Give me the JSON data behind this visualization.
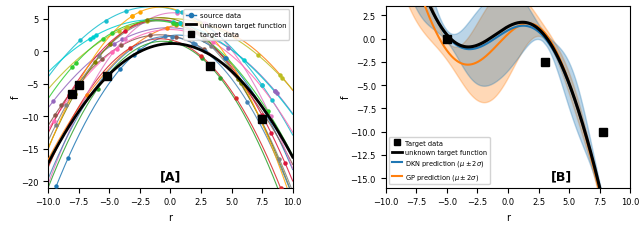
{
  "panel_A": {
    "xlabel": "r",
    "ylabel": "f",
    "xlim": [
      -10,
      10
    ],
    "ylim": [
      -21,
      7
    ],
    "label_A": "[A]",
    "target_func_coeffs": [
      -0.15,
      0.1,
      1.0
    ],
    "target_data_points": [
      [
        -8,
        -6.5
      ],
      [
        -7.5,
        -5.2
      ],
      [
        -5.2,
        -3.8
      ],
      [
        3.2,
        -2.3
      ],
      [
        7.5,
        -10.5
      ]
    ],
    "source_colors": [
      "#1f77b4",
      "#ff7f0e",
      "#2ca02c",
      "#d62728",
      "#9467bd",
      "#8c564b",
      "#e377c2",
      "#7f7f7f",
      "#bcbd22",
      "#17becf",
      "#ff69b4",
      "#808000",
      "#00ced1",
      "#dc143c",
      "#4682b4",
      "#ffa500",
      "#32cd32"
    ],
    "legend_source_color": "#1f77b4",
    "source_seed": 12
  },
  "panel_B": {
    "xlabel": "r",
    "ylabel": "f",
    "xlim": [
      -10,
      10
    ],
    "ylim": [
      -16,
      3.5
    ],
    "label_B": "[B]",
    "target_data_points": [
      [
        -5.0,
        0.0
      ],
      [
        3.0,
        -2.5
      ],
      [
        7.8,
        -10.0
      ]
    ],
    "dkn_color": "#1f77b4",
    "gp_color": "#ff7f0e",
    "dkn_fill_alpha": 0.3,
    "gp_fill_alpha": 0.3
  }
}
